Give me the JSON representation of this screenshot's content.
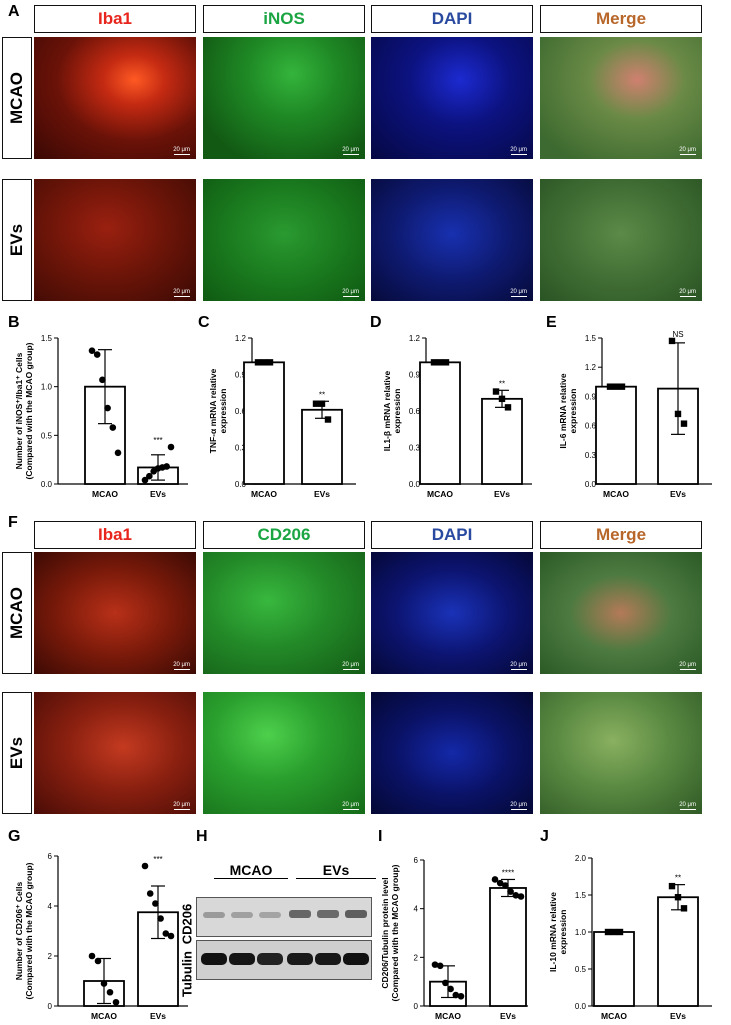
{
  "panel_letters": {
    "A": "A",
    "B": "B",
    "C": "C",
    "D": "D",
    "E": "E",
    "F": "F",
    "G": "G",
    "H": "H",
    "I": "I",
    "J": "J"
  },
  "panel_a": {
    "headers": [
      "Iba1",
      "iNOS",
      "DAPI",
      "Merge"
    ],
    "rows": [
      "MCAO",
      "EVs"
    ],
    "scale_bar": "20 μm"
  },
  "panel_f": {
    "headers": [
      "Iba1",
      "CD206",
      "DAPI",
      "Merge"
    ],
    "rows": [
      "MCAO",
      "EVs"
    ],
    "scale_bar": "20 μm"
  },
  "colors": {
    "Iba1": "#e8251c",
    "iNOS": "#1aa542",
    "CD206": "#1aa542",
    "DAPI": "#2a4aa0",
    "Merge": "#b8672a"
  },
  "western_blot": {
    "groups": [
      "MCAO",
      "EVs"
    ],
    "bands": [
      "CD206",
      "Tubulin"
    ]
  },
  "chart_data": [
    {
      "id": "B",
      "type": "bar",
      "categories": [
        "MCAO",
        "EVs"
      ],
      "ylabel_line1": "Number of iNOS⁺/Iba1⁺ Cells",
      "ylabel_line2": "(Compared with the MCAO group)",
      "ylim": [
        0,
        1.5
      ],
      "yticks": [
        "0.0",
        "0.5",
        "1.0",
        "1.5"
      ],
      "tickvals": [
        0,
        0.5,
        1.0,
        1.5
      ],
      "values": [
        1.0,
        0.17
      ],
      "errors": [
        0.38,
        0.13
      ],
      "points": [
        [
          1.37,
          1.33,
          1.07,
          0.78,
          0.58,
          0.32
        ],
        [
          0.04,
          0.08,
          0.13,
          0.16,
          0.17,
          0.18,
          0.38
        ]
      ],
      "marker": "circle",
      "sig": [
        "",
        "***"
      ]
    },
    {
      "id": "C",
      "type": "bar",
      "categories": [
        "MCAO",
        "EVs"
      ],
      "ylabel_line1": "TNF-α mRNA relative",
      "ylabel_line2": "expression",
      "ylim": [
        0,
        1.2
      ],
      "yticks": [
        "0.0",
        "0.3",
        "0.6",
        "0.9",
        "1.2"
      ],
      "tickvals": [
        0,
        0.3,
        0.6,
        0.9,
        1.2
      ],
      "values": [
        1.0,
        0.61
      ],
      "errors": [
        0.0,
        0.07
      ],
      "points": [
        [
          1.0,
          1.0,
          1.0
        ],
        [
          0.66,
          0.66,
          0.53
        ]
      ],
      "marker": "square",
      "sig": [
        "",
        "**"
      ]
    },
    {
      "id": "D",
      "type": "bar",
      "categories": [
        "MCAO",
        "EVs"
      ],
      "ylabel_line1": "IL1-β mRNA relative",
      "ylabel_line2": "expression",
      "ylim": [
        0,
        1.2
      ],
      "yticks": [
        "0.0",
        "0.3",
        "0.6",
        "0.9",
        "1.2"
      ],
      "tickvals": [
        0,
        0.3,
        0.6,
        0.9,
        1.2
      ],
      "values": [
        1.0,
        0.7
      ],
      "errors": [
        0.0,
        0.07
      ],
      "points": [
        [
          1.0,
          1.0,
          1.0
        ],
        [
          0.76,
          0.7,
          0.63
        ]
      ],
      "marker": "square",
      "sig": [
        "",
        "**"
      ]
    },
    {
      "id": "E",
      "type": "bar",
      "categories": [
        "MCAO",
        "EVs"
      ],
      "ylabel_line1": "IL-6 mRNA relative",
      "ylabel_line2": "expression",
      "ylim": [
        0,
        1.5
      ],
      "yticks": [
        "0.0",
        "0.3",
        "0.6",
        "0.9",
        "1.2",
        "1.5"
      ],
      "tickvals": [
        0,
        0.3,
        0.6,
        0.9,
        1.2,
        1.5
      ],
      "values": [
        1.0,
        0.98
      ],
      "errors": [
        0.0,
        0.47
      ],
      "points": [
        [
          1.0,
          1.0,
          1.0
        ],
        [
          1.47,
          0.72,
          0.62
        ]
      ],
      "marker": "square",
      "sig": [
        "",
        "NS"
      ]
    },
    {
      "id": "G",
      "type": "bar",
      "categories": [
        "MCAO",
        "EVs"
      ],
      "ylabel_line1": "Number of CD206⁺ Cells",
      "ylabel_line2": "(Compared with the MCAO group)",
      "ylim": [
        0,
        6
      ],
      "yticks": [
        "0",
        "2",
        "4",
        "6"
      ],
      "tickvals": [
        0,
        2,
        4,
        6
      ],
      "values": [
        1.0,
        3.75
      ],
      "errors": [
        0.9,
        1.05
      ],
      "points": [
        [
          2.0,
          1.8,
          0.9,
          0.55,
          0.15
        ],
        [
          5.6,
          4.5,
          4.1,
          3.5,
          2.9,
          2.8
        ]
      ],
      "marker": "circle",
      "sig": [
        "",
        "***"
      ]
    },
    {
      "id": "I",
      "type": "bar",
      "categories": [
        "MCAO",
        "EVs"
      ],
      "ylabel_line1": "CD206/Tubulin protein level",
      "ylabel_line2": "(Compared with the MCAO group)",
      "ylim": [
        0,
        6
      ],
      "yticks": [
        "0",
        "2",
        "4",
        "6"
      ],
      "tickvals": [
        0,
        2,
        4,
        6
      ],
      "values": [
        1.0,
        4.85
      ],
      "errors": [
        0.65,
        0.35
      ],
      "points": [
        [
          1.7,
          1.65,
          0.95,
          0.7,
          0.45,
          0.4
        ],
        [
          5.2,
          5.05,
          4.95,
          4.7,
          4.55,
          4.5
        ]
      ],
      "marker": "circle",
      "sig": [
        "",
        "****"
      ]
    },
    {
      "id": "J",
      "type": "bar",
      "categories": [
        "MCAO",
        "EVs"
      ],
      "ylabel_line1": "IL-10 mRNA relative",
      "ylabel_line2": "expression",
      "ylim": [
        0,
        2.0
      ],
      "yticks": [
        "0.0",
        "0.5",
        "1.0",
        "1.5",
        "2.0"
      ],
      "tickvals": [
        0,
        0.5,
        1.0,
        1.5,
        2.0
      ],
      "values": [
        1.0,
        1.47
      ],
      "errors": [
        0.0,
        0.17
      ],
      "points": [
        [
          1.0,
          1.0,
          1.0
        ],
        [
          1.62,
          1.47,
          1.32
        ]
      ],
      "marker": "square",
      "sig": [
        "",
        "**"
      ]
    }
  ]
}
